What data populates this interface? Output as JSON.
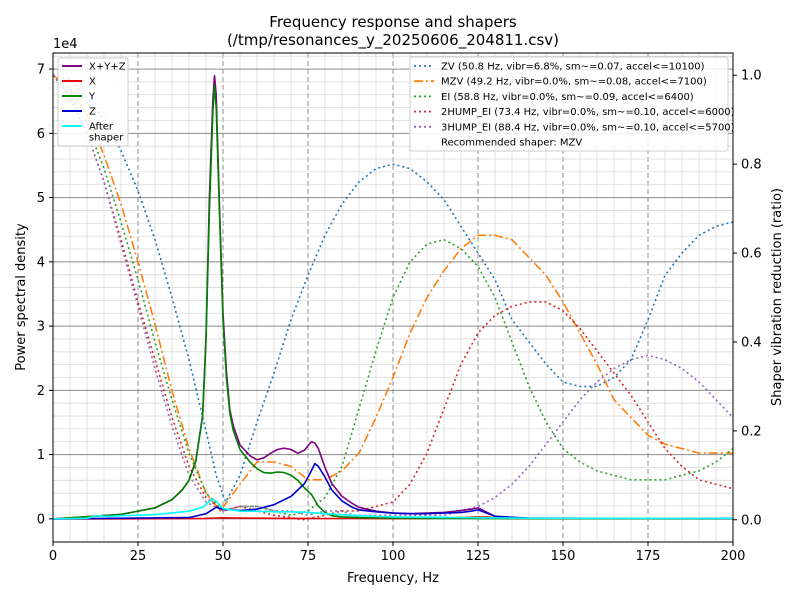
{
  "chart_data": {
    "type": "line",
    "title": "Frequency response and shapers",
    "subtitle": "(/tmp/resonances_y_20250606_204811.csv)",
    "xlabel": "Frequency, Hz",
    "ylabel": "Power spectral density",
    "y2label": "Shaper vibration reduction (ratio)",
    "xlim": [
      0,
      200
    ],
    "ylim": [
      -3600,
      72500
    ],
    "y2lim": [
      -0.05,
      1.05
    ],
    "y_scale_label": "1e4",
    "x_ticks": [
      0,
      25,
      50,
      75,
      100,
      125,
      150,
      175,
      200
    ],
    "y_ticks": [
      0,
      1,
      2,
      3,
      4,
      5,
      6,
      7
    ],
    "y2_ticks": [
      0.0,
      0.2,
      0.4,
      0.6,
      0.8,
      1.0
    ],
    "grid": true,
    "psd_series": [
      {
        "name": "X+Y+Z",
        "color": "#800080",
        "x": [
          0,
          20,
          30,
          35,
          38,
          40,
          42,
          44,
          45,
          46,
          47,
          47.5,
          48,
          49,
          50,
          51,
          52,
          53,
          55,
          58,
          60,
          62,
          64,
          66,
          68,
          70,
          72,
          74,
          75,
          76,
          77,
          78,
          80,
          82,
          85,
          88,
          90,
          95,
          100,
          105,
          110,
          115,
          120,
          123,
          125,
          127,
          130,
          135,
          140,
          200
        ],
        "y": [
          0,
          700,
          1700,
          3000,
          4500,
          6000,
          9000,
          16000,
          28000,
          50000,
          65000,
          69000,
          66000,
          48000,
          32000,
          23000,
          17000,
          14500,
          11500,
          9800,
          9200,
          9500,
          10200,
          10800,
          11000,
          10800,
          10200,
          10700,
          11400,
          12000,
          11800,
          11000,
          8000,
          5500,
          3500,
          2400,
          1800,
          1200,
          900,
          800,
          900,
          1000,
          1300,
          1500,
          1700,
          1200,
          400,
          150,
          100,
          80
        ]
      },
      {
        "name": "X",
        "color": "#e8000b",
        "x": [
          0,
          20,
          40,
          45,
          48,
          50,
          55,
          60,
          70,
          80,
          90,
          100,
          110,
          120,
          125,
          128,
          132,
          140,
          200
        ],
        "y": [
          0,
          10,
          40,
          80,
          130,
          160,
          120,
          100,
          80,
          60,
          50,
          40,
          60,
          200,
          300,
          280,
          60,
          20,
          10
        ]
      },
      {
        "name": "Y",
        "color": "#008000",
        "x": [
          0,
          20,
          30,
          35,
          38,
          40,
          42,
          44,
          45,
          46,
          47,
          47.5,
          48,
          49,
          50,
          51,
          52,
          53,
          55,
          58,
          60,
          62,
          64,
          66,
          68,
          70,
          72,
          74,
          76,
          78,
          80,
          82,
          85,
          90,
          100,
          120,
          200
        ],
        "y": [
          0,
          700,
          1700,
          3000,
          4500,
          6000,
          9000,
          16000,
          28000,
          48000,
          63000,
          67500,
          64000,
          47000,
          31000,
          22000,
          16500,
          13800,
          10800,
          8800,
          7800,
          7200,
          7100,
          7300,
          7200,
          6800,
          6000,
          4800,
          3800,
          2000,
          1000,
          500,
          300,
          200,
          100,
          60,
          20
        ]
      },
      {
        "name": "Z",
        "color": "#0000cd",
        "x": [
          0,
          40,
          45,
          48,
          50,
          55,
          60,
          65,
          70,
          72,
          74,
          76,
          77,
          78,
          80,
          82,
          85,
          88,
          90,
          95,
          100,
          105,
          110,
          115,
          120,
          123,
          125,
          127,
          130,
          140,
          200
        ],
        "y": [
          0,
          200,
          800,
          1800,
          1500,
          1300,
          1500,
          2200,
          3500,
          4500,
          5500,
          7500,
          8600,
          8200,
          6500,
          4500,
          2800,
          1800,
          1400,
          1100,
          900,
          800,
          800,
          900,
          1000,
          1200,
          1400,
          1000,
          400,
          100,
          80
        ]
      },
      {
        "name": "After\nshaper",
        "color": "#00ffff",
        "x": [
          0,
          10,
          13,
          16,
          20,
          30,
          40,
          44,
          46,
          47,
          48,
          50,
          55,
          60,
          65,
          70,
          75,
          80,
          90,
          100,
          120,
          140,
          200
        ],
        "y": [
          0,
          100,
          500,
          350,
          500,
          650,
          1200,
          1800,
          2700,
          3100,
          2700,
          1600,
          1200,
          1200,
          1100,
          1100,
          1000,
          800,
          500,
          300,
          200,
          100,
          80
        ]
      }
    ],
    "shaper_series": [
      {
        "name": "ZV (50.8 Hz, vibr=6.8%, sm~=0.07, accel<=10100)",
        "color": "#1f77b4",
        "dash": "dotted",
        "x": [
          0,
          5,
          10,
          15,
          20,
          25,
          30,
          35,
          40,
          45,
          48,
          50.8,
          55,
          60,
          65,
          70,
          75,
          80,
          85,
          90,
          95,
          100,
          105,
          110,
          115,
          120,
          125,
          130,
          135,
          140,
          145,
          150,
          155,
          160,
          165,
          170,
          175,
          180,
          185,
          190,
          195,
          200
        ],
        "y": [
          1.0,
          0.99,
          0.95,
          0.9,
          0.83,
          0.74,
          0.63,
          0.5,
          0.36,
          0.2,
          0.1,
          0.04,
          0.1,
          0.22,
          0.33,
          0.45,
          0.55,
          0.64,
          0.71,
          0.76,
          0.79,
          0.8,
          0.79,
          0.76,
          0.72,
          0.66,
          0.6,
          0.54,
          0.45,
          0.4,
          0.35,
          0.31,
          0.3,
          0.3,
          0.32,
          0.36,
          0.45,
          0.55,
          0.6,
          0.64,
          0.66,
          0.67
        ]
      },
      {
        "name": "MZV (49.2 Hz, vibr=0.0%, sm~=0.08, accel<=7100)",
        "color": "#ff7f0e",
        "dash": "dashdot",
        "x": [
          0,
          5,
          10,
          15,
          20,
          25,
          30,
          35,
          40,
          45,
          49.2,
          55,
          60,
          65,
          70,
          75,
          80,
          85,
          90,
          95,
          100,
          105,
          110,
          115,
          120,
          125,
          130,
          135,
          140,
          145,
          150,
          155,
          160,
          165,
          170,
          175,
          180,
          185,
          190,
          195,
          200
        ],
        "y": [
          1.0,
          0.97,
          0.91,
          0.82,
          0.71,
          0.58,
          0.44,
          0.29,
          0.16,
          0.06,
          0.02,
          0.08,
          0.13,
          0.13,
          0.12,
          0.09,
          0.09,
          0.11,
          0.15,
          0.23,
          0.32,
          0.42,
          0.5,
          0.56,
          0.61,
          0.64,
          0.64,
          0.63,
          0.59,
          0.55,
          0.49,
          0.42,
          0.35,
          0.27,
          0.23,
          0.19,
          0.17,
          0.16,
          0.15,
          0.15,
          0.15
        ]
      },
      {
        "name": "EI (58.8 Hz, vibr=0.0%, sm~=0.09, accel<=6400)",
        "color": "#2ca02c",
        "dash": "dotted",
        "x": [
          0,
          5,
          10,
          15,
          20,
          25,
          30,
          35,
          40,
          45,
          50,
          55,
          60,
          65,
          70,
          75,
          80,
          85,
          90,
          95,
          100,
          105,
          110,
          115,
          120,
          125,
          130,
          135,
          140,
          145,
          150,
          155,
          160,
          165,
          170,
          175,
          180,
          185,
          190,
          195,
          200
        ],
        "y": [
          1.0,
          0.96,
          0.89,
          0.79,
          0.67,
          0.54,
          0.4,
          0.27,
          0.15,
          0.06,
          0.02,
          0.03,
          0.03,
          0.02,
          0.01,
          0.02,
          0.05,
          0.12,
          0.25,
          0.38,
          0.5,
          0.58,
          0.62,
          0.63,
          0.61,
          0.57,
          0.5,
          0.4,
          0.3,
          0.22,
          0.16,
          0.13,
          0.11,
          0.1,
          0.09,
          0.09,
          0.09,
          0.1,
          0.11,
          0.13,
          0.16
        ]
      },
      {
        "name": "2HUMP_EI (73.4 Hz, vibr=0.0%, sm~=0.10, accel<=6000)",
        "color": "#d62728",
        "dash": "dotted",
        "x": [
          0,
          5,
          10,
          15,
          20,
          25,
          30,
          35,
          40,
          45,
          50,
          55,
          60,
          65,
          70,
          73.4,
          80,
          85,
          90,
          95,
          100,
          105,
          110,
          115,
          120,
          125,
          130,
          135,
          140,
          145,
          150,
          155,
          160,
          165,
          170,
          175,
          180,
          185,
          190,
          195,
          200
        ],
        "y": [
          1.0,
          0.95,
          0.87,
          0.76,
          0.63,
          0.49,
          0.36,
          0.23,
          0.12,
          0.05,
          0.02,
          0.03,
          0.02,
          0.01,
          0.005,
          0.0,
          0.01,
          0.02,
          0.02,
          0.03,
          0.04,
          0.08,
          0.15,
          0.25,
          0.35,
          0.42,
          0.46,
          0.48,
          0.49,
          0.49,
          0.47,
          0.43,
          0.38,
          0.33,
          0.28,
          0.22,
          0.16,
          0.12,
          0.09,
          0.08,
          0.07
        ]
      },
      {
        "name": "3HUMP_EI (88.4 Hz, vibr=0.0%, sm~=0.10, accel<=5700)",
        "color": "#9467bd",
        "dash": "dotted",
        "x": [
          0,
          5,
          10,
          15,
          20,
          25,
          30,
          35,
          40,
          45,
          50,
          55,
          60,
          65,
          70,
          75,
          80,
          85,
          88.4,
          95,
          100,
          105,
          110,
          115,
          120,
          125,
          130,
          135,
          140,
          145,
          150,
          155,
          160,
          165,
          170,
          175,
          180,
          185,
          190,
          195,
          200
        ],
        "y": [
          1.0,
          0.95,
          0.87,
          0.76,
          0.62,
          0.48,
          0.34,
          0.21,
          0.1,
          0.04,
          0.02,
          0.03,
          0.03,
          0.02,
          0.02,
          0.01,
          0.02,
          0.02,
          0.01,
          0.01,
          0.01,
          0.01,
          0.01,
          0.01,
          0.02,
          0.03,
          0.05,
          0.08,
          0.12,
          0.17,
          0.22,
          0.27,
          0.31,
          0.34,
          0.36,
          0.37,
          0.36,
          0.34,
          0.31,
          0.27,
          0.23
        ]
      }
    ],
    "legend_left_position": "top-left",
    "legend_right_position": "top-right",
    "recommended_text": "Recommended shaper: MZV"
  }
}
